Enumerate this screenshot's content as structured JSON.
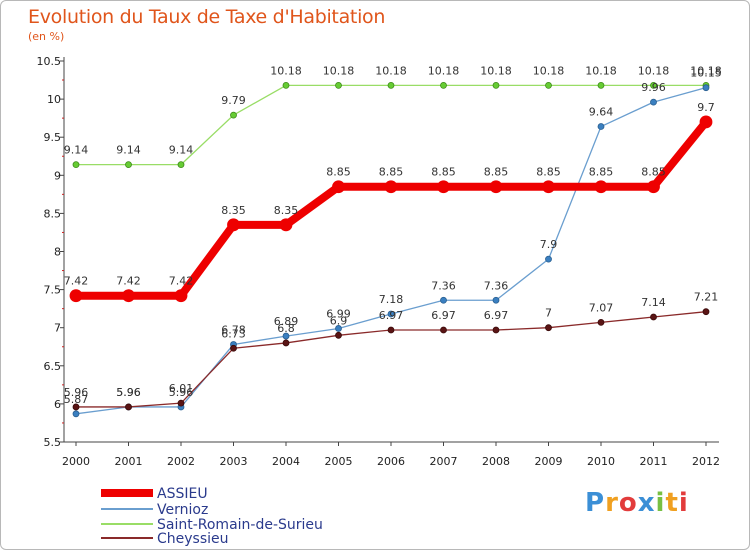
{
  "chart_data": {
    "type": "line",
    "title": "Evolution du Taux de Taxe d'Habitation",
    "subtitle": "(en %)",
    "xlabel": "",
    "ylabel": "",
    "x": [
      "2000",
      "2001",
      "2002",
      "2003",
      "2004",
      "2005",
      "2006",
      "2007",
      "2008",
      "2009",
      "2010",
      "2011",
      "2012"
    ],
    "ylim": [
      5.5,
      10.5
    ],
    "yticks": [
      "5.5",
      "6",
      "6.5",
      "7",
      "7.5",
      "8",
      "8.5",
      "9",
      "9.5",
      "10",
      "10.5"
    ],
    "grid": false,
    "legend_position": "bottom-left",
    "series": [
      {
        "name": "ASSIEU",
        "color": "#ee0000",
        "values": [
          7.42,
          7.42,
          7.42,
          8.35,
          8.35,
          8.85,
          8.85,
          8.85,
          8.85,
          8.85,
          8.85,
          8.85,
          9.7
        ],
        "labels": [
          "7.42",
          "7.42",
          "7.42",
          "8.35",
          "8.35",
          "8.85",
          "8.85",
          "8.85",
          "8.85",
          "8.85",
          "8.85",
          "8.85",
          "9.7"
        ]
      },
      {
        "name": "Vernioz",
        "color": "#6a9ecf",
        "values": [
          5.87,
          5.96,
          5.96,
          6.78,
          6.89,
          6.99,
          7.18,
          7.36,
          7.36,
          7.9,
          9.64,
          9.96,
          10.15
        ],
        "labels": [
          "5.87",
          "5.96",
          "5.96",
          "6.78",
          "6.89",
          "6.99",
          "7.18",
          "7.36",
          "7.36",
          "7.9",
          "9.64",
          "9.96",
          "10.15"
        ]
      },
      {
        "name": "Saint-Romain-de-Surieu",
        "color": "#99dd66",
        "values": [
          9.14,
          9.14,
          9.14,
          9.79,
          10.18,
          10.18,
          10.18,
          10.18,
          10.18,
          10.18,
          10.18,
          10.18,
          10.18
        ],
        "labels": [
          "9.14",
          "9.14",
          "9.14",
          "9.79",
          "10.18",
          "10.18",
          "10.18",
          "10.18",
          "10.18",
          "10.18",
          "10.18",
          "10.18",
          "10.18"
        ]
      },
      {
        "name": "Cheyssieu",
        "color": "#8a2a2a",
        "values": [
          5.96,
          5.96,
          6.01,
          6.73,
          6.8,
          6.9,
          6.97,
          6.97,
          6.97,
          7,
          7.07,
          7.14,
          7.21
        ],
        "labels": [
          "5.96",
          "5.96",
          "6.01",
          "6.73",
          "6.8",
          "6.9",
          "6.97",
          "6.97",
          "6.97",
          "7",
          "7.07",
          "7.14",
          "7.21"
        ]
      }
    ]
  },
  "logo": {
    "letters": [
      "P",
      "r",
      "o",
      "x",
      "i",
      "t",
      "i"
    ],
    "colors": [
      "#3b8fd6",
      "#f0a020",
      "#e23c3c",
      "#3b8fd6",
      "#78c043",
      "#f0a020",
      "#e23c3c"
    ]
  }
}
